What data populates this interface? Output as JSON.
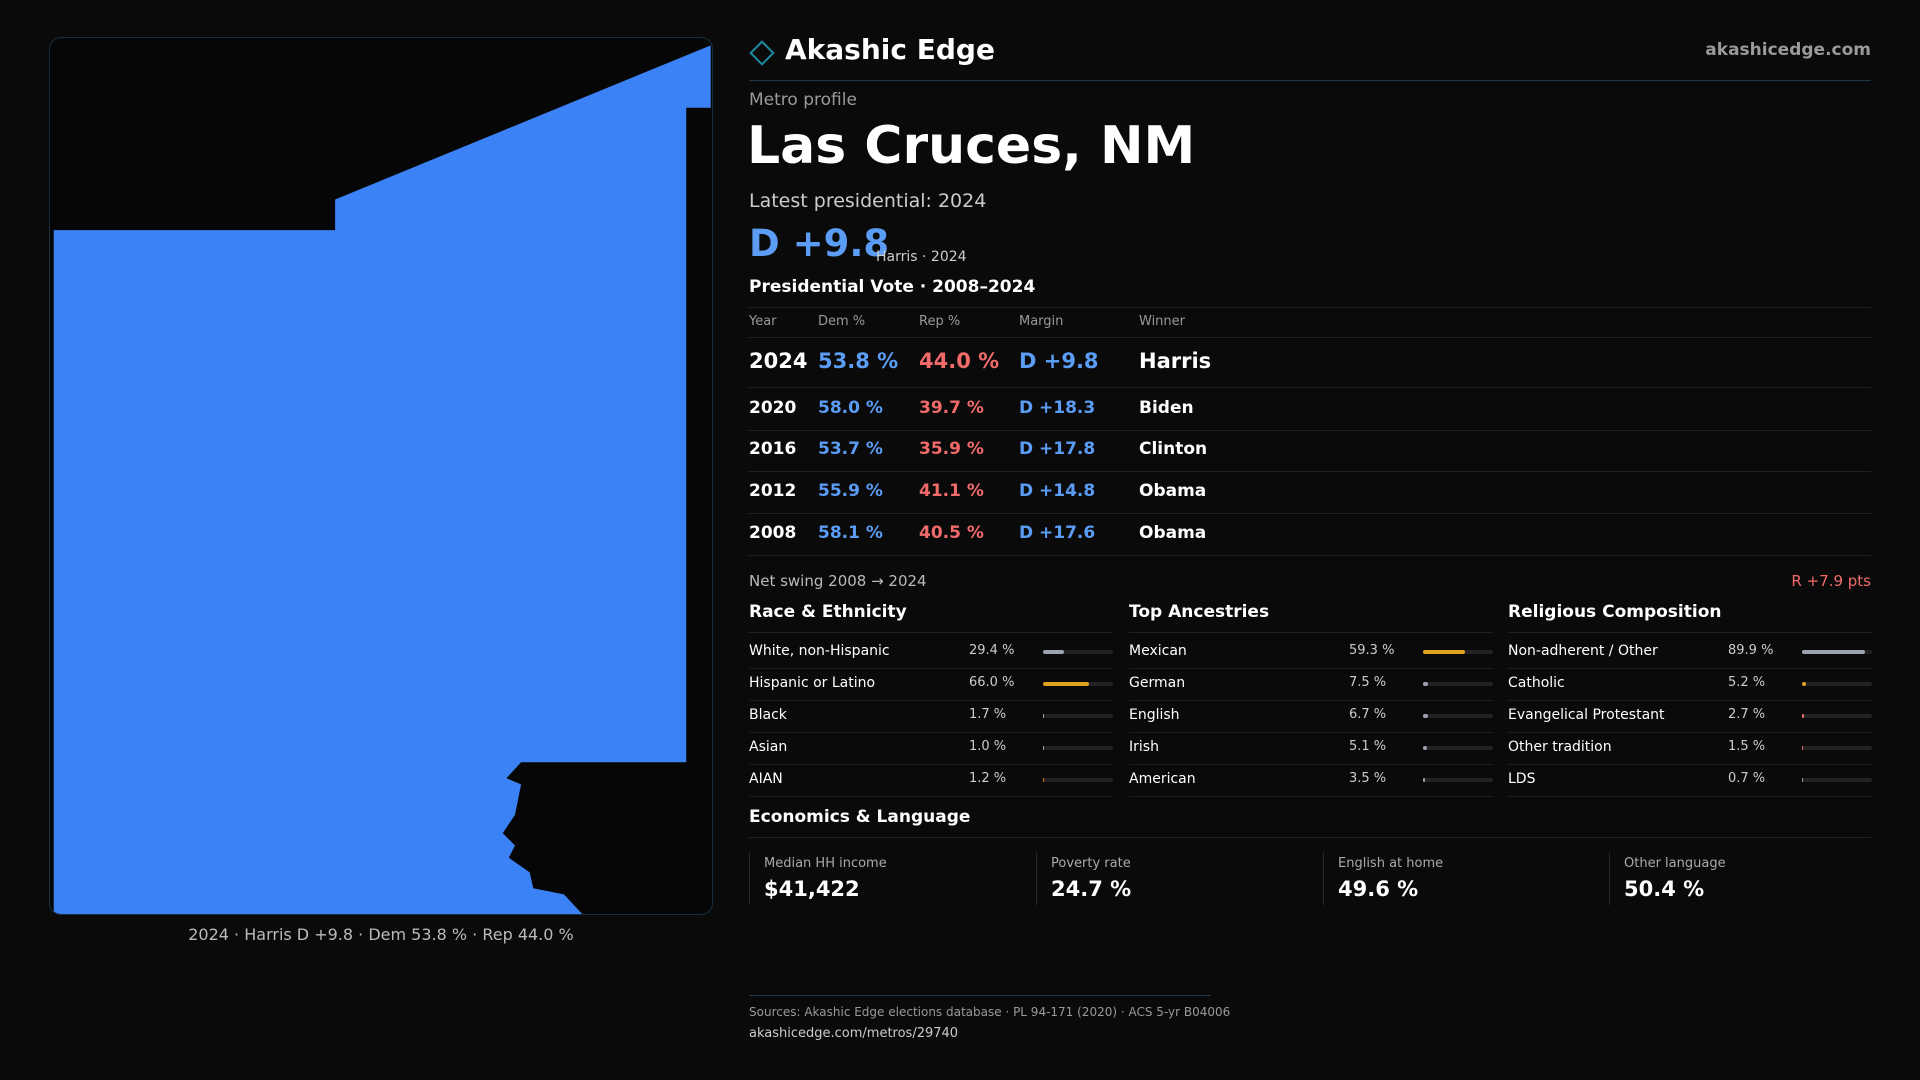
{
  "brand": "Akashic Edge",
  "site": "akashicedge.com",
  "map_caption": "2024 · Harris D +9.8 · Dem 53.8 % · Rep 44.0 %",
  "kicker": "Metro profile",
  "title": "Las Cruces, NM",
  "latest": "Latest presidential: 2024",
  "headline": {
    "margin": "D +9.8",
    "note": "Harris · 2024"
  },
  "vote": {
    "title": "Presidential Vote · 2008–2024",
    "columns": [
      "Year",
      "Dem %",
      "Rep %",
      "Margin",
      "Winner"
    ],
    "rows": [
      [
        "2024",
        "53.8 %",
        "44.0 %",
        "D +9.8",
        "Harris"
      ],
      [
        "2020",
        "58.0 %",
        "39.7 %",
        "D +18.3",
        "Biden"
      ],
      [
        "2016",
        "53.7 %",
        "35.9 %",
        "D +17.8",
        "Clinton"
      ],
      [
        "2012",
        "55.9 %",
        "41.1 %",
        "D +14.8",
        "Obama"
      ],
      [
        "2008",
        "58.1 %",
        "40.5 %",
        "D +17.6",
        "Obama"
      ]
    ]
  },
  "swing": {
    "label": "Net swing 2008 → 2024",
    "value": "R +7.9 pts"
  },
  "panels": [
    {
      "title": "Race & Ethnicity",
      "items": [
        {
          "label": "White, non-Hispanic",
          "value": 29.4,
          "value_label": "29.4 %",
          "color": "#9ca3af"
        },
        {
          "label": "Hispanic or Latino",
          "value": 66.0,
          "value_label": "66.0 %",
          "color": "#e0a020"
        },
        {
          "label": "Black",
          "value": 1.7,
          "value_label": "1.7 %",
          "color": "#9ca3af"
        },
        {
          "label": "Asian",
          "value": 1.0,
          "value_label": "1.0 %",
          "color": "#9ca3af"
        },
        {
          "label": "AIAN",
          "value": 1.2,
          "value_label": "1.2 %",
          "color": "#d97706"
        }
      ]
    },
    {
      "title": "Top Ancestries",
      "items": [
        {
          "label": "Mexican",
          "value": 59.3,
          "value_label": "59.3 %",
          "color": "#e0a020"
        },
        {
          "label": "German",
          "value": 7.5,
          "value_label": "7.5 %",
          "color": "#9ca3af"
        },
        {
          "label": "English",
          "value": 6.7,
          "value_label": "6.7 %",
          "color": "#9ca3af"
        },
        {
          "label": "Irish",
          "value": 5.1,
          "value_label": "5.1 %",
          "color": "#9ca3af"
        },
        {
          "label": "American",
          "value": 3.5,
          "value_label": "3.5 %",
          "color": "#9ca3af"
        }
      ]
    },
    {
      "title": "Religious Composition",
      "items": [
        {
          "label": "Non-adherent / Other",
          "value": 89.9,
          "value_label": "89.9 %",
          "color": "#9ca3af"
        },
        {
          "label": "Catholic",
          "value": 5.2,
          "value_label": "5.2 %",
          "color": "#e0a020"
        },
        {
          "label": "Evangelical Protestant",
          "value": 2.7,
          "value_label": "2.7 %",
          "color": "#f26b6b"
        },
        {
          "label": "Other tradition",
          "value": 1.5,
          "value_label": "1.5 %",
          "color": "#f26b6b"
        },
        {
          "label": "LDS",
          "value": 0.7,
          "value_label": "0.7 %",
          "color": "#9ca3af"
        }
      ]
    }
  ],
  "economics": {
    "title": "Economics & Language",
    "stats": [
      {
        "label": "Median HH income",
        "value": "$41,422"
      },
      {
        "label": "Poverty rate",
        "value": "24.7 %"
      },
      {
        "label": "English at home",
        "value": "49.6 %"
      },
      {
        "label": "Other language",
        "value": "50.4 %"
      }
    ]
  },
  "sources": {
    "line": "Sources: Akashic Edge elections database · PL 94-171 (2020) · ACS 5-yr B04006",
    "url": "akashicedge.com/metros/29740"
  }
}
